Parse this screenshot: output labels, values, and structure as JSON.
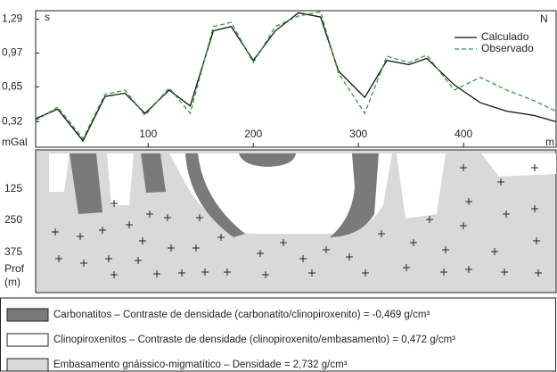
{
  "chart_data": {
    "type": "line",
    "x_unit_label": "m",
    "y_unit_label": "mGal",
    "left_label": "s",
    "right_label": "N",
    "x": [
      -7,
      14,
      38,
      59,
      78,
      97,
      120,
      140,
      162,
      179,
      200,
      221,
      243,
      264,
      281,
      306,
      327,
      348,
      365,
      391,
      416,
      441,
      467,
      488
    ],
    "series": [
      {
        "name": "Calculado",
        "color": "#111111",
        "dash": false,
        "values": [
          0.35,
          0.44,
          0.14,
          0.56,
          0.59,
          0.4,
          0.62,
          0.47,
          1.18,
          1.22,
          0.9,
          1.18,
          1.35,
          1.31,
          0.8,
          0.55,
          0.9,
          0.86,
          0.92,
          0.67,
          0.5,
          0.42,
          0.38,
          0.32
        ]
      },
      {
        "name": "Observado",
        "color": "#2e9e44",
        "dash": true,
        "values": [
          0.33,
          0.46,
          0.16,
          0.58,
          0.62,
          0.38,
          0.64,
          0.4,
          1.22,
          1.26,
          0.88,
          1.22,
          1.32,
          1.36,
          0.78,
          0.4,
          0.94,
          0.88,
          0.95,
          0.62,
          0.74,
          0.62,
          0.52,
          0.42
        ]
      }
    ],
    "xlim": [
      -7,
      488
    ],
    "ylim": [
      0.08,
      1.37
    ],
    "xticks": [
      100,
      200,
      300,
      400
    ],
    "yticks": [
      {
        "value": 0.32,
        "label": "0,32"
      },
      {
        "value": 0.65,
        "label": "0,65"
      },
      {
        "value": 0.97,
        "label": "0,97"
      },
      {
        "value": 1.29,
        "label": "1,29"
      }
    ],
    "legend": "upper right"
  },
  "section": {
    "depth_labels": [
      "125",
      "250",
      "375"
    ],
    "depth_axis_label": [
      "Prof",
      "(m)"
    ]
  },
  "legend_items": [
    {
      "label": "Carbonatitos – Contraste de densidade (carbonatito/clinopiroxenito) = -0,469 g/cm³",
      "color": "#7a7a7a"
    },
    {
      "label": "Clinopiroxenitos – Contraste de densidade (clinopiroxenito/embasamento) = 0,472 g/cm³",
      "color": "#ffffff"
    },
    {
      "label": "Embasamento gnáissico-migmatítico – Densidade = 2,732 g/cm³",
      "color": "#d9d9d9"
    }
  ]
}
